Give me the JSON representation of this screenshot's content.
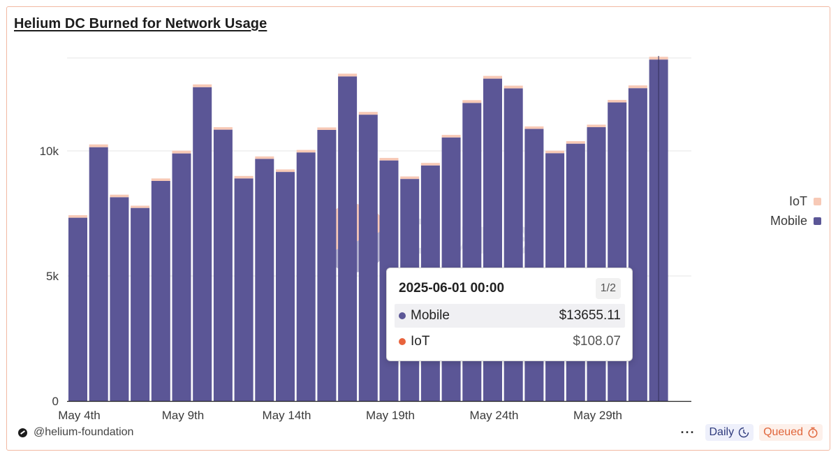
{
  "title": "Helium DC Burned for Network Usage",
  "chart_data": {
    "type": "bar",
    "stacked": true,
    "categories": [
      "May 4th",
      "May 5th",
      "May 6th",
      "May 7th",
      "May 8th",
      "May 9th",
      "May 10th",
      "May 11th",
      "May 12th",
      "May 13th",
      "May 14th",
      "May 15th",
      "May 16th",
      "May 17th",
      "May 18th",
      "May 19th",
      "May 20th",
      "May 21st",
      "May 22nd",
      "May 23rd",
      "May 24th",
      "May 25th",
      "May 26th",
      "May 27th",
      "May 28th",
      "May 29th",
      "May 30th",
      "May 31st",
      "June 1st"
    ],
    "x_tick_labels": [
      "May 4th",
      "May 9th",
      "May 14th",
      "May 19th",
      "May 24th",
      "May 29th"
    ],
    "series": [
      {
        "name": "Mobile",
        "color": "#5b5696",
        "values": [
          7330,
          10150,
          8150,
          7720,
          8800,
          9900,
          12550,
          10850,
          8900,
          9680,
          9160,
          9940,
          10840,
          12980,
          11450,
          9620,
          8880,
          9420,
          10540,
          11920,
          12890,
          12500,
          10880,
          9910,
          10290,
          10950,
          11940,
          12510,
          13655.11
        ]
      },
      {
        "name": "IoT",
        "color": "#f7c9b6",
        "values": [
          100,
          110,
          100,
          90,
          100,
          110,
          110,
          100,
          100,
          100,
          100,
          100,
          100,
          110,
          110,
          100,
          100,
          100,
          100,
          110,
          110,
          110,
          100,
          100,
          100,
          100,
          100,
          110,
          108.07
        ]
      }
    ],
    "y_ticks": [
      0,
      5000,
      10000
    ],
    "y_tick_labels": [
      "0",
      "5k",
      "10k"
    ],
    "ylim": [
      0,
      13800
    ],
    "legend_position": "right",
    "legend": [
      "IoT",
      "Mobile"
    ],
    "hovered_index": 28
  },
  "tooltip": {
    "date": "2025-06-01 00:00",
    "page": "1/2",
    "rows": [
      {
        "name": "Mobile",
        "value": "$13655.11",
        "color": "#5b5696"
      },
      {
        "name": "IoT",
        "value": "$108.07",
        "color": "#e8633c"
      }
    ]
  },
  "watermark": {
    "text": "Dune"
  },
  "footer": {
    "author": "@helium-foundation",
    "more": "···",
    "interval": "Daily",
    "status": "Queued"
  }
}
